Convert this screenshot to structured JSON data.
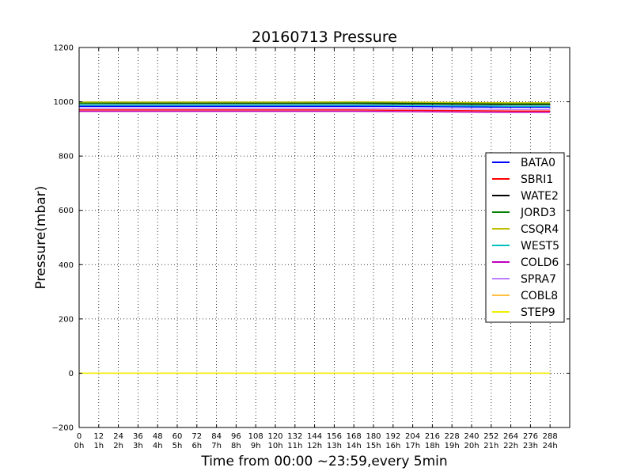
{
  "chart_data": {
    "type": "line",
    "title": "20160713 Pressure",
    "xlabel": "Time from 00:00 ~23:59,every 5min",
    "ylabel": "Pressure(mbar)",
    "xlim": [
      0,
      300
    ],
    "ylim": [
      -200,
      1200
    ],
    "xticks": [
      "0",
      "12",
      "24",
      "36",
      "48",
      "60",
      "72",
      "84",
      "96",
      "108",
      "120",
      "132",
      "144",
      "156",
      "168",
      "180",
      "192",
      "204",
      "216",
      "228",
      "240",
      "252",
      "264",
      "276",
      "288"
    ],
    "xticks_hours": [
      "0h",
      "1h",
      "2h",
      "3h",
      "4h",
      "5h",
      "6h",
      "7h",
      "8h",
      "9h",
      "10h",
      "11h",
      "12h",
      "13h",
      "14h",
      "15h",
      "16h",
      "17h",
      "18h",
      "19h",
      "20h",
      "21h",
      "22h",
      "23h",
      "24h"
    ],
    "yticks": [
      "−200",
      "0",
      "200",
      "400",
      "600",
      "800",
      "1000",
      "1200"
    ],
    "ytick_values": [
      -200,
      0,
      200,
      400,
      600,
      800,
      1000,
      1200
    ],
    "grid": true,
    "legend_position": "right",
    "x": [
      0,
      24,
      48,
      72,
      96,
      120,
      144,
      168,
      192,
      216,
      240,
      264,
      288
    ],
    "series": [
      {
        "name": "BATA0",
        "color": "#0000ff",
        "values": [
          983,
          983,
          983,
          983,
          983,
          983,
          983,
          983,
          983,
          982,
          981,
          980,
          980
        ]
      },
      {
        "name": "SBRI1",
        "color": "#ff0000",
        "values": [
          970,
          970,
          970,
          970,
          970,
          970,
          970,
          970,
          969,
          968,
          967,
          966,
          966
        ]
      },
      {
        "name": "WATE2",
        "color": "#000000",
        "values": [
          994,
          994,
          994,
          994,
          994,
          994,
          994,
          994,
          993,
          992,
          991,
          990,
          990
        ]
      },
      {
        "name": "JORD3",
        "color": "#008000",
        "values": [
          995,
          996,
          996,
          996,
          996,
          996,
          996,
          996,
          996,
          995,
          994,
          993,
          993
        ]
      },
      {
        "name": "CSQR4",
        "color": "#bfbf00",
        "values": [
          999,
          999,
          999,
          999,
          999,
          999,
          999,
          1000,
          999,
          998,
          997,
          996,
          996
        ]
      },
      {
        "name": "WEST5",
        "color": "#00bfbf",
        "values": [
          988,
          988,
          988,
          988,
          988,
          988,
          988,
          988,
          987,
          986,
          985,
          984,
          984
        ]
      },
      {
        "name": "COLD6",
        "color": "#bf00bf",
        "values": [
          965,
          965,
          965,
          965,
          965,
          965,
          965,
          965,
          964,
          963,
          962,
          961,
          961
        ]
      },
      {
        "name": "SPRA7",
        "color": "#bf80ff",
        "values": [
          976,
          976,
          976,
          976,
          976,
          976,
          976,
          976,
          975,
          974,
          973,
          972,
          972
        ]
      },
      {
        "name": "COBL8",
        "color": "#ffbf40",
        "values": [
          0,
          0,
          0,
          0,
          0,
          0,
          0,
          0,
          0,
          0,
          0,
          0,
          0
        ]
      },
      {
        "name": "STEP9",
        "color": "#f0f000",
        "values": [
          0,
          0,
          0,
          0,
          0,
          0,
          0,
          0,
          0,
          0,
          0,
          0,
          0
        ]
      }
    ]
  }
}
